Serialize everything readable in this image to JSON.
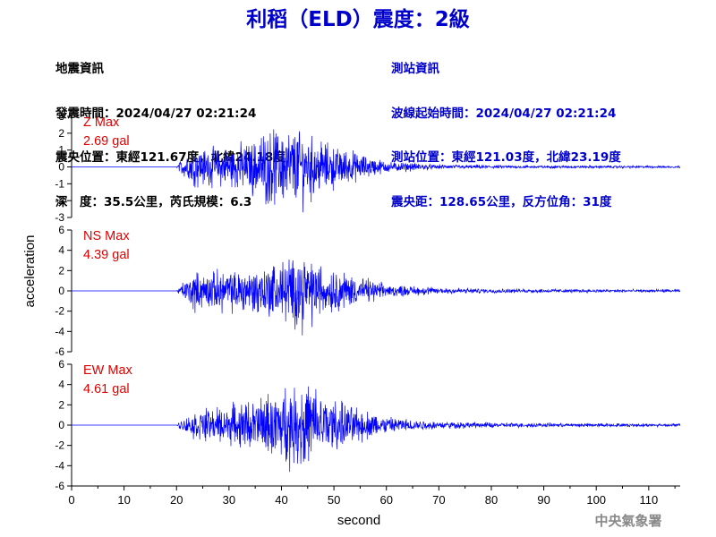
{
  "title": "利稻（ELD）震度：2級",
  "event_info": {
    "heading": "地震資訊",
    "time": "發震時間：2024/04/27 02:21:24",
    "epicenter": "震央位置：東經121.67度，北緯24.18度",
    "depth_magnitude": "深　度：35.5公里，芮氏規模：6.3"
  },
  "station_info": {
    "heading": "測站資訊",
    "wave_start": "波線起始時間：2024/04/27 02:21:24",
    "location": "測站位置：東經121.03度，北緯23.19度",
    "distance": "震央距：128.65公里，反方位角：31度"
  },
  "footer_agency": "中央氣象署",
  "chart_data": {
    "type": "line",
    "xlabel": "second",
    "ylabel": "acceleration",
    "xlim": [
      0,
      116
    ],
    "x_ticks": [
      0,
      10,
      20,
      30,
      40,
      50,
      60,
      70,
      80,
      90,
      100,
      110
    ],
    "series_color": "#0000ff",
    "panels": [
      {
        "component": "Z",
        "max_label": "Z Max",
        "max_value": "2.69 gal",
        "ylim": [
          -3,
          3
        ],
        "y_ticks": [
          -3,
          -2,
          -1,
          0,
          1,
          2,
          3
        ],
        "peak": 2.69,
        "envelope": [
          [
            0,
            0.0
          ],
          [
            20,
            0.0
          ],
          [
            21,
            0.5
          ],
          [
            23,
            1.0
          ],
          [
            28,
            1.0
          ],
          [
            33,
            1.3
          ],
          [
            38,
            2.0
          ],
          [
            43,
            2.2
          ],
          [
            48,
            1.3
          ],
          [
            53,
            0.9
          ],
          [
            60,
            0.3
          ],
          [
            70,
            0.12
          ],
          [
            80,
            0.1
          ],
          [
            85,
            0.08
          ],
          [
            116,
            0.06
          ]
        ]
      },
      {
        "component": "NS",
        "max_label": "NS Max",
        "max_value": "4.39 gal",
        "ylim": [
          -6,
          6
        ],
        "y_ticks": [
          -6,
          -4,
          -2,
          0,
          2,
          4,
          6
        ],
        "peak": 4.39,
        "envelope": [
          [
            0,
            0.0
          ],
          [
            20,
            0.0
          ],
          [
            21,
            0.6
          ],
          [
            23,
            1.6
          ],
          [
            30,
            1.8
          ],
          [
            36,
            2.2
          ],
          [
            40,
            2.8
          ],
          [
            44,
            3.3
          ],
          [
            48,
            2.2
          ],
          [
            53,
            1.5
          ],
          [
            60,
            0.55
          ],
          [
            70,
            0.3
          ],
          [
            80,
            0.2
          ],
          [
            95,
            0.15
          ],
          [
            116,
            0.12
          ]
        ]
      },
      {
        "component": "EW",
        "max_label": "EW Max",
        "max_value": "4.61 gal",
        "ylim": [
          -6,
          6
        ],
        "y_ticks": [
          -6,
          -4,
          -2,
          0,
          2,
          4,
          6
        ],
        "peak": 4.61,
        "envelope": [
          [
            0,
            0.0
          ],
          [
            20,
            0.0
          ],
          [
            21,
            0.5
          ],
          [
            24,
            1.2
          ],
          [
            30,
            1.5
          ],
          [
            38,
            2.5
          ],
          [
            42,
            3.2
          ],
          [
            45,
            3.6
          ],
          [
            48,
            2.5
          ],
          [
            53,
            1.6
          ],
          [
            60,
            0.7
          ],
          [
            70,
            0.3
          ],
          [
            80,
            0.2
          ],
          [
            95,
            0.15
          ],
          [
            116,
            0.12
          ]
        ]
      }
    ]
  }
}
